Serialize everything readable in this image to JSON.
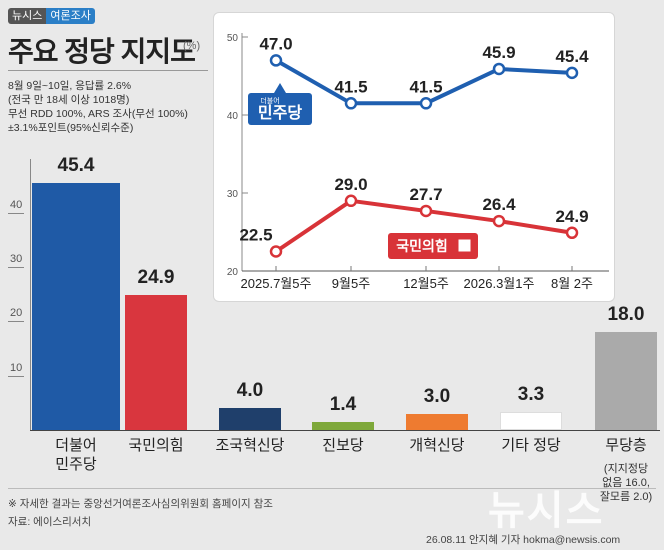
{
  "brand": {
    "name": "뉴시스",
    "section": "여론조사"
  },
  "title": "주요 정당 지지도",
  "unit": "(%)",
  "meta_lines": [
    "8월 9일~10일, 응답률 2.6%",
    "(전국 만 18세 이상 1018명)",
    "무선 RDD 100%, ARS 조사(무선 100%)",
    "±3.1%포인트(95%신뢰수준)"
  ],
  "colors": {
    "democratic": "#1f5aa6",
    "ppp": "#d9363e",
    "rebuilding": "#1f3f6b",
    "progressive": "#7ea83a",
    "reform": "#ee7b30",
    "other": "#ffffff",
    "independent": "#aaaaaa",
    "line_blue": "#1f5fb0",
    "line_red": "#d83338"
  },
  "chart_data": [
    {
      "type": "bar",
      "ylim": [
        0,
        50
      ],
      "yticks": [
        10,
        20,
        30,
        40
      ],
      "categories": [
        "더불어\n민주당",
        "국민의힘",
        "조국혁신당",
        "진보당",
        "개혁신당",
        "기타 정당",
        "무당층"
      ],
      "values": [
        45.4,
        24.9,
        4.0,
        1.4,
        3.0,
        3.3,
        18.0
      ],
      "value_labels": [
        "45.4",
        "24.9",
        "4.0",
        "1.4",
        "3.0",
        "3.3",
        "18.0"
      ],
      "annotation": "(지지정당\n없음 16.0,\n잘모름 2.0)"
    },
    {
      "type": "line",
      "x": [
        "2025.7월5주",
        "9월5주",
        "12월5주",
        "2026.3월1주",
        "8월 2주"
      ],
      "x_positions": [
        "2025.7월5주",
        "9월5주",
        "",
        "12월5주",
        "2026.3월1주",
        "8월 2주"
      ],
      "ylim": [
        20,
        50
      ],
      "yticks": [
        20,
        30,
        40,
        50
      ],
      "series": [
        {
          "name": "민주당",
          "badge_small": "더불어",
          "values": [
            47.0,
            41.5,
            41.5,
            45.9,
            45.4
          ],
          "labels": [
            "47.0",
            "41.5",
            "41.5",
            "45.9",
            "45.4"
          ]
        },
        {
          "name": "국민의힘",
          "values": [
            22.5,
            29.0,
            27.7,
            26.4,
            24.9
          ],
          "labels": [
            "22.5",
            "29.0",
            "27.7",
            "26.4",
            "24.9"
          ]
        }
      ]
    }
  ],
  "footer": {
    "note": "※ 자세한 결과는 중앙선거여론조사심의위원회 홈페이지 참조",
    "source": "자료: 에이스리서치",
    "credit": "26.08.11 안지혜 기자 hokma@newsis.com",
    "watermark": "뉴시스"
  }
}
